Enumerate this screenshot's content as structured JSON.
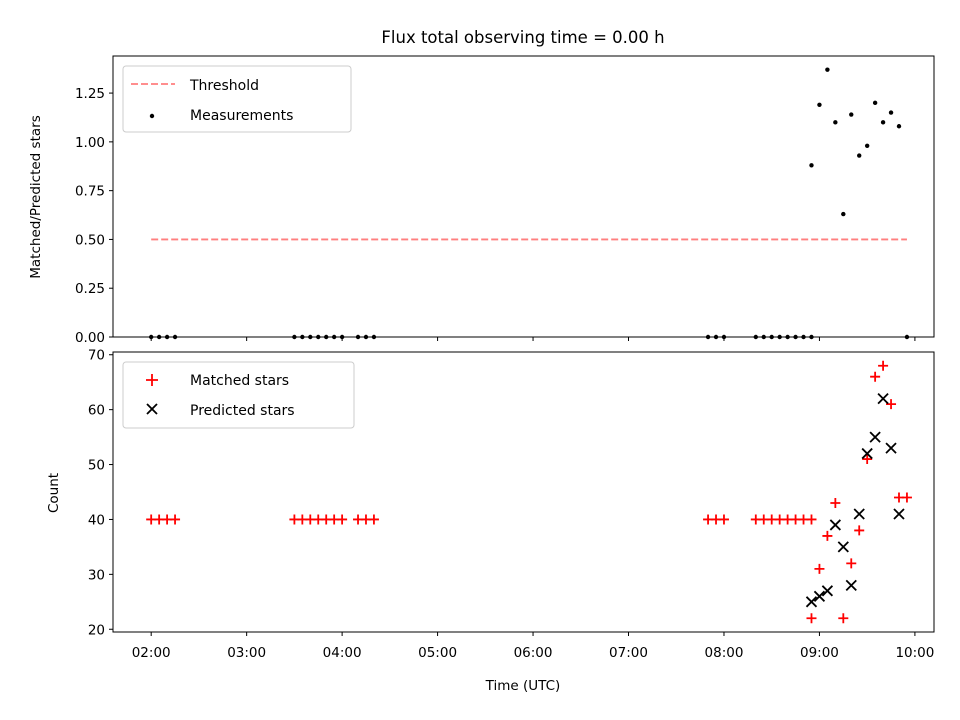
{
  "chart_data": [
    {
      "type": "scatter",
      "title": "Flux total observing time = 0.00 h",
      "xlabel": "",
      "ylabel": "Matched/Predicted stars",
      "xlim": [
        "01:36",
        "10:12"
      ],
      "ylim": [
        0,
        1.44
      ],
      "yticks": [
        "0.00",
        "0.25",
        "0.50",
        "0.75",
        "1.00",
        "1.25"
      ],
      "legend_position": "top-left",
      "grid": false,
      "series": [
        {
          "name": "Threshold",
          "style": "dashed-line",
          "color": "#ff7f7f",
          "x": [
            "02:00",
            "09:55"
          ],
          "y": [
            0.5,
            0.5
          ]
        },
        {
          "name": "Measurements",
          "style": "dot",
          "color": "#000000",
          "x": [
            "02:00",
            "02:05",
            "02:10",
            "02:15",
            "03:30",
            "03:35",
            "03:40",
            "03:45",
            "03:50",
            "03:55",
            "04:00",
            "04:10",
            "04:15",
            "04:20",
            "07:50",
            "07:55",
            "08:00",
            "08:20",
            "08:25",
            "08:30",
            "08:35",
            "08:40",
            "08:45",
            "08:50",
            "08:55",
            "08:55",
            "09:00",
            "09:05",
            "09:10",
            "09:15",
            "09:20",
            "09:25",
            "09:30",
            "09:35",
            "09:40",
            "09:45",
            "09:50",
            "09:55"
          ],
          "y": [
            0,
            0,
            0,
            0,
            0,
            0,
            0,
            0,
            0,
            0,
            0,
            0,
            0,
            0,
            0,
            0,
            0,
            0,
            0,
            0,
            0,
            0,
            0,
            0,
            0,
            0.88,
            1.19,
            1.37,
            1.1,
            0.63,
            1.14,
            0.93,
            0.98,
            1.2,
            1.1,
            1.15,
            1.08,
            0
          ]
        }
      ]
    },
    {
      "type": "scatter",
      "title": "",
      "xlabel": "Time (UTC)",
      "ylabel": "Count",
      "xlim": [
        "01:36",
        "10:12"
      ],
      "ylim": [
        19.5,
        70.5
      ],
      "xticks": [
        "02:00",
        "03:00",
        "04:00",
        "05:00",
        "06:00",
        "07:00",
        "08:00",
        "09:00",
        "10:00"
      ],
      "yticks": [
        "20",
        "30",
        "40",
        "50",
        "60",
        "70"
      ],
      "legend_position": "top-left",
      "grid": false,
      "series": [
        {
          "name": "Matched stars",
          "marker": "plus",
          "color": "#ff0000",
          "x": [
            "02:00",
            "02:05",
            "02:10",
            "02:15",
            "03:30",
            "03:35",
            "03:40",
            "03:45",
            "03:50",
            "03:55",
            "04:00",
            "04:10",
            "04:15",
            "04:20",
            "07:50",
            "07:55",
            "08:00",
            "08:20",
            "08:25",
            "08:30",
            "08:35",
            "08:40",
            "08:45",
            "08:50",
            "08:55",
            "08:55",
            "09:00",
            "09:05",
            "09:10",
            "09:15",
            "09:20",
            "09:25",
            "09:30",
            "09:35",
            "09:40",
            "09:45",
            "09:50",
            "09:55"
          ],
          "y": [
            40,
            40,
            40,
            40,
            40,
            40,
            40,
            40,
            40,
            40,
            40,
            40,
            40,
            40,
            40,
            40,
            40,
            40,
            40,
            40,
            40,
            40,
            40,
            40,
            40,
            22,
            31,
            37,
            43,
            22,
            32,
            38,
            51,
            66,
            68,
            61,
            44,
            44
          ]
        },
        {
          "name": "Predicted stars",
          "marker": "x",
          "color": "#000000",
          "x": [
            "08:55",
            "09:00",
            "09:05",
            "09:10",
            "09:15",
            "09:20",
            "09:25",
            "09:30",
            "09:35",
            "09:40",
            "09:45",
            "09:50"
          ],
          "y": [
            25,
            26,
            27,
            39,
            35,
            28,
            41,
            52,
            55,
            62,
            53,
            41
          ]
        }
      ]
    }
  ]
}
